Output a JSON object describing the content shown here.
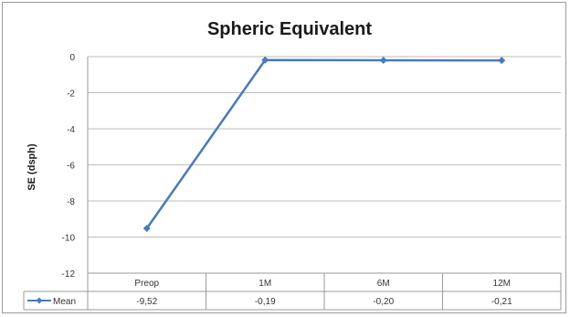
{
  "chart_data": {
    "type": "line",
    "title": "Spheric Equivalent",
    "ylabel": "SE (dsph)",
    "xlabel": "",
    "categories": [
      "Preop",
      "1M",
      "6M",
      "12M"
    ],
    "ylim": [
      -12,
      0
    ],
    "yticks": [
      0,
      -2,
      -4,
      -6,
      -8,
      -10,
      -12
    ],
    "ytick_labels": [
      "0",
      "-2",
      "-4",
      "-6",
      "-8",
      "-10",
      "-12"
    ],
    "grid": true,
    "legend_placement": "data-table-left",
    "series": [
      {
        "name": "Mean",
        "values": [
          -9.52,
          -0.19,
          -0.2,
          -0.21
        ],
        "value_labels": [
          "-9,52",
          "-0,19",
          "-0,20",
          "-0,21"
        ],
        "color": "#4a7ab8"
      }
    ]
  }
}
